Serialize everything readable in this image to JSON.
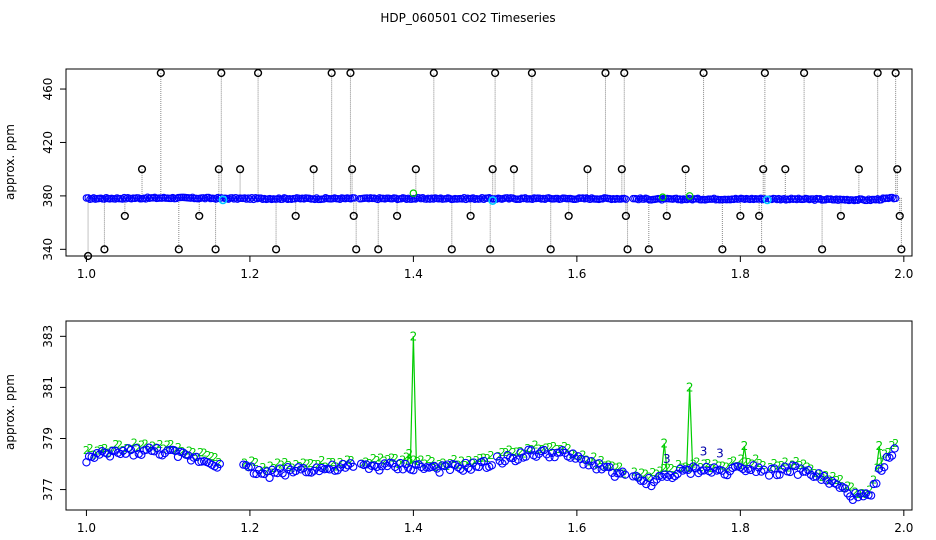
{
  "title": "HDP_060501  CO2 Timeseries",
  "colors": {
    "main": "#0000ff",
    "secondary": "#00cc00",
    "outlier": "#000000",
    "highlight": "#00ccff",
    "spike_line": "#888888"
  },
  "chart_data": [
    {
      "type": "scatter",
      "ylabel": "approx. ppm",
      "xlim": [
        0.975,
        2.01
      ],
      "ylim": [
        335,
        475
      ],
      "xticks": [
        "1.0",
        "1.2",
        "1.4",
        "1.6",
        "1.8",
        "2.0"
      ],
      "yticks": [
        "340",
        "380",
        "420",
        "460"
      ],
      "gaps": [
        [
          1.165,
          1.168
        ],
        [
          1.328,
          1.333
        ],
        [
          1.66,
          1.667
        ],
        [
          1.83,
          1.835
        ]
      ],
      "baseline": {
        "x": [
          1.0,
          1.1,
          1.2,
          1.33,
          1.5,
          1.66,
          1.7,
          1.83,
          1.96,
          1.99
        ],
        "y": [
          378,
          378.5,
          378,
          378,
          378,
          378,
          377.5,
          377.8,
          377,
          378.5
        ]
      },
      "outliers": [
        {
          "x": 1.002,
          "y": 335
        },
        {
          "x": 1.022,
          "y": 340
        },
        {
          "x": 1.047,
          "y": 365
        },
        {
          "x": 1.068,
          "y": 400
        },
        {
          "x": 1.091,
          "y": 472
        },
        {
          "x": 1.113,
          "y": 340
        },
        {
          "x": 1.138,
          "y": 365
        },
        {
          "x": 1.158,
          "y": 340
        },
        {
          "x": 1.162,
          "y": 400
        },
        {
          "x": 1.165,
          "y": 472
        },
        {
          "x": 1.188,
          "y": 400
        },
        {
          "x": 1.21,
          "y": 472
        },
        {
          "x": 1.232,
          "y": 340
        },
        {
          "x": 1.256,
          "y": 365
        },
        {
          "x": 1.278,
          "y": 400
        },
        {
          "x": 1.3,
          "y": 472
        },
        {
          "x": 1.323,
          "y": 472
        },
        {
          "x": 1.325,
          "y": 400
        },
        {
          "x": 1.327,
          "y": 365
        },
        {
          "x": 1.33,
          "y": 340
        },
        {
          "x": 1.357,
          "y": 340
        },
        {
          "x": 1.38,
          "y": 365
        },
        {
          "x": 1.403,
          "y": 400
        },
        {
          "x": 1.425,
          "y": 472
        },
        {
          "x": 1.447,
          "y": 340
        },
        {
          "x": 1.47,
          "y": 365
        },
        {
          "x": 1.494,
          "y": 340
        },
        {
          "x": 1.497,
          "y": 400
        },
        {
          "x": 1.5,
          "y": 472
        },
        {
          "x": 1.523,
          "y": 400
        },
        {
          "x": 1.545,
          "y": 472
        },
        {
          "x": 1.568,
          "y": 340
        },
        {
          "x": 1.59,
          "y": 365
        },
        {
          "x": 1.613,
          "y": 400
        },
        {
          "x": 1.635,
          "y": 472
        },
        {
          "x": 1.655,
          "y": 400
        },
        {
          "x": 1.658,
          "y": 472
        },
        {
          "x": 1.66,
          "y": 365
        },
        {
          "x": 1.662,
          "y": 340
        },
        {
          "x": 1.688,
          "y": 340
        },
        {
          "x": 1.71,
          "y": 365
        },
        {
          "x": 1.733,
          "y": 400
        },
        {
          "x": 1.755,
          "y": 472
        },
        {
          "x": 1.778,
          "y": 340
        },
        {
          "x": 1.8,
          "y": 365
        },
        {
          "x": 1.823,
          "y": 365
        },
        {
          "x": 1.826,
          "y": 340
        },
        {
          "x": 1.828,
          "y": 400
        },
        {
          "x": 1.83,
          "y": 472
        },
        {
          "x": 1.855,
          "y": 400
        },
        {
          "x": 1.878,
          "y": 472
        },
        {
          "x": 1.9,
          "y": 340
        },
        {
          "x": 1.923,
          "y": 365
        },
        {
          "x": 1.945,
          "y": 400
        },
        {
          "x": 1.968,
          "y": 472
        },
        {
          "x": 1.99,
          "y": 472
        },
        {
          "x": 1.992,
          "y": 400
        },
        {
          "x": 1.995,
          "y": 365
        },
        {
          "x": 1.997,
          "y": 340
        }
      ],
      "highlights": [
        {
          "x": 1.167,
          "y": 377
        },
        {
          "x": 1.497,
          "y": 376.5
        },
        {
          "x": 1.833,
          "y": 377
        }
      ],
      "secondary_points": [
        {
          "x": 1.4,
          "y": 382
        },
        {
          "x": 1.705,
          "y": 379
        },
        {
          "x": 1.738,
          "y": 380
        }
      ]
    },
    {
      "type": "scatter",
      "ylabel": "approx. ppm",
      "xlim": [
        0.975,
        2.01
      ],
      "ylim": [
        376.2,
        383.6
      ],
      "xticks": [
        "1.0",
        "1.2",
        "1.4",
        "1.6",
        "1.8",
        "2.0"
      ],
      "yticks": [
        "377",
        "379",
        "381",
        "383"
      ],
      "gaps": [
        [
          1.165,
          1.19
        ],
        [
          1.328,
          1.333
        ],
        [
          1.497,
          1.5
        ],
        [
          1.66,
          1.667
        ],
        [
          1.83,
          1.835
        ]
      ],
      "blue_series": {
        "x": [
          1.0,
          1.03,
          1.06,
          1.09,
          1.12,
          1.15,
          1.165,
          1.19,
          1.22,
          1.26,
          1.3,
          1.33,
          1.36,
          1.4,
          1.44,
          1.497,
          1.5,
          1.54,
          1.58,
          1.62,
          1.66,
          1.667,
          1.69,
          1.72,
          1.75,
          1.78,
          1.81,
          1.83,
          1.835,
          1.86,
          1.89,
          1.92,
          1.94,
          1.96,
          1.97,
          1.99
        ],
        "y": [
          378.2,
          378.4,
          378.5,
          378.5,
          378.3,
          378.1,
          378.0,
          377.9,
          377.6,
          377.8,
          377.8,
          377.9,
          377.9,
          377.9,
          377.8,
          378.0,
          378.1,
          378.4,
          378.4,
          378.0,
          377.5,
          377.4,
          377.3,
          377.6,
          377.8,
          377.7,
          377.9,
          377.8,
          377.7,
          377.8,
          377.6,
          377.1,
          376.7,
          376.7,
          377.8,
          378.5
        ]
      },
      "green_spikes": [
        {
          "x": 1.395,
          "base": 378.0,
          "peak": 378.4
        },
        {
          "x": 1.4,
          "base": 378.0,
          "peak": 383.0
        },
        {
          "x": 1.707,
          "base": 377.6,
          "peak": 378.8
        },
        {
          "x": 1.738,
          "base": 377.8,
          "peak": 381.0
        },
        {
          "x": 1.805,
          "base": 377.8,
          "peak": 378.7
        },
        {
          "x": 1.97,
          "base": 377.8,
          "peak": 378.7
        }
      ],
      "label_marker": "2",
      "label_marker_alt": "3"
    }
  ]
}
